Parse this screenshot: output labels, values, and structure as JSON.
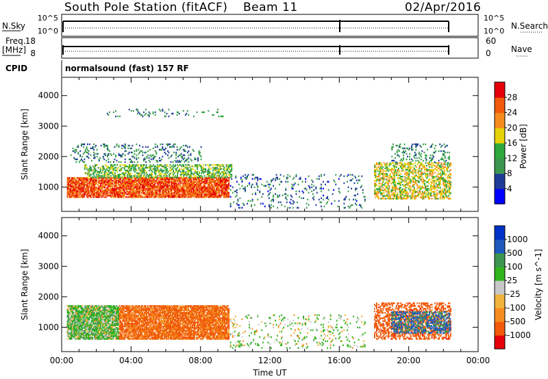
{
  "header": {
    "station": "South Pole Station (fitACF)",
    "beam": "Beam 11",
    "date": "02/Apr/2016"
  },
  "sky_panel": {
    "left_label": "N.Sky",
    "left_ticks": [
      "10^5",
      "10^0"
    ],
    "right_ticks": [
      "10^5",
      "10^0"
    ],
    "right_label": "N.Search"
  },
  "freq_panel": {
    "left_label_line1": "Freq.",
    "left_label_line2": "[MHz]",
    "left_ticks": [
      "18",
      "8"
    ],
    "right_ticks": [
      "60",
      "0"
    ],
    "right_label": "Nave"
  },
  "cpid": {
    "label": "CPID",
    "value": "normalsound (fast) 157 RF"
  },
  "colors": {
    "power": [
      "#0000ff",
      "#1e3c96",
      "#3c9650",
      "#2ea83c",
      "#e6d20a",
      "#f58c1e",
      "#f05a0a",
      "#e6000a"
    ],
    "velocity": [
      "#e6000a",
      "#f05a0a",
      "#f58c1e",
      "#f0b43c",
      "#c8c8c8",
      "#32b41e",
      "#3c9650",
      "#1e5abe",
      "#0032c8"
    ]
  },
  "chart_data": [
    {
      "type": "heatmap",
      "name": "power",
      "ylabel": "Slant Range [km]",
      "ylim": [
        200,
        4600
      ],
      "yticks": [
        1000,
        2000,
        3000,
        4000
      ],
      "xlim": [
        0,
        24
      ],
      "colorbar": {
        "label": "Power [dB]",
        "range": [
          0,
          32
        ],
        "ticks": [
          4,
          8,
          12,
          16,
          20,
          24,
          28
        ]
      },
      "echo_regions": [
        {
          "t": [
            0.3,
            9.6
          ],
          "r": [
            650,
            1300
          ],
          "level": "strong",
          "value_db": 26
        },
        {
          "t": [
            1.3,
            9.8
          ],
          "r": [
            1300,
            1750
          ],
          "level": "medium",
          "value_db": 14
        },
        {
          "t": [
            0.5,
            8.0
          ],
          "r": [
            1800,
            2400
          ],
          "level": "scattered",
          "value_db": 9
        },
        {
          "t": [
            2.6,
            9.3
          ],
          "r": [
            3300,
            3550
          ],
          "level": "sparse",
          "value_db": 10
        },
        {
          "t": [
            9.7,
            17.5
          ],
          "r": [
            300,
            1400
          ],
          "level": "sparse",
          "value_db": 8
        },
        {
          "t": [
            18.0,
            22.4
          ],
          "r": [
            600,
            1800
          ],
          "level": "medium",
          "value_db": 18
        },
        {
          "t": [
            19.0,
            22.4
          ],
          "r": [
            1800,
            2400
          ],
          "level": "scattered",
          "value_db": 10
        }
      ]
    },
    {
      "type": "heatmap",
      "name": "velocity",
      "ylabel": "Slant Range [km]",
      "xlabel": "Time UT",
      "ylim": [
        200,
        4600
      ],
      "yticks": [
        1000,
        2000,
        3000,
        4000
      ],
      "xlim": [
        0,
        24
      ],
      "xticks": [
        "00:00",
        "04:00",
        "08:00",
        "12:00",
        "16:00",
        "20:00",
        "00:00"
      ],
      "colorbar": {
        "label": "Velocity [m s^-1]",
        "ticks": [
          "1000",
          "500",
          "100",
          "25",
          "-25",
          "-100",
          "-500",
          "-1000"
        ]
      },
      "echo_regions": [
        {
          "t": [
            0.3,
            3.3
          ],
          "r": [
            600,
            1700
          ],
          "level": "strong",
          "value_ms": 60
        },
        {
          "t": [
            3.3,
            9.6
          ],
          "r": [
            600,
            1700
          ],
          "level": "strong",
          "value_ms": -150
        },
        {
          "t": [
            9.7,
            17.5
          ],
          "r": [
            300,
            1400
          ],
          "level": "sparse",
          "value_ms": 30
        },
        {
          "t": [
            18.0,
            22.4
          ],
          "r": [
            600,
            1800
          ],
          "level": "medium",
          "value_ms": -300
        },
        {
          "t": [
            19.0,
            22.4
          ],
          "r": [
            800,
            1500
          ],
          "level": "medium",
          "value_ms": 600
        }
      ]
    }
  ]
}
